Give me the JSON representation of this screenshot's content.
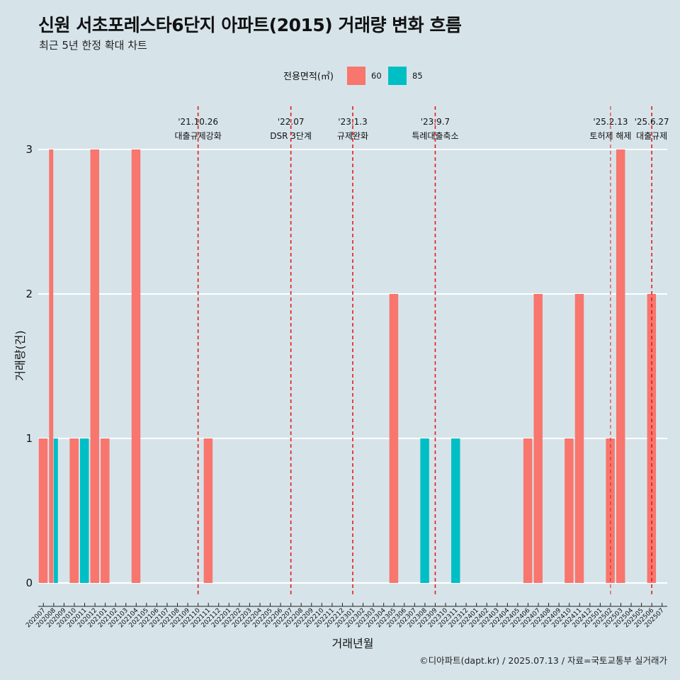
{
  "title": "신원 서초포레스타6단지 아파트(2015) 거래량 변화 흐름",
  "subtitle": "최근 5년 한정 확대 차트",
  "caption": "©디아파트(dapt.kr) / 2025.07.13 / 자료=국토교통부 실거래가",
  "chart_data": {
    "type": "bar",
    "xlabel": "거래년월",
    "ylabel": "거래량(건)",
    "ylim": [
      0,
      3
    ],
    "yticks": [
      0,
      1,
      2,
      3
    ],
    "grid": "horizontal",
    "legend": {
      "title": "전용면적(㎡)",
      "position": "top",
      "entries": [
        {
          "label": "60",
          "color": "#F8766D"
        },
        {
          "label": "85",
          "color": "#00BFC4"
        }
      ]
    },
    "categories": [
      "202007",
      "202008",
      "202009",
      "202010",
      "202011",
      "202012",
      "202101",
      "202102",
      "202103",
      "202104",
      "202105",
      "202106",
      "202107",
      "202108",
      "202109",
      "202110",
      "202111",
      "202112",
      "202201",
      "202202",
      "202203",
      "202204",
      "202205",
      "202206",
      "202207",
      "202208",
      "202209",
      "202210",
      "202211",
      "202212",
      "202301",
      "202302",
      "202303",
      "202304",
      "202305",
      "202306",
      "202307",
      "202308",
      "202309",
      "202310",
      "202311",
      "202312",
      "202401",
      "202402",
      "202403",
      "202404",
      "202405",
      "202406",
      "202407",
      "202408",
      "202409",
      "202410",
      "202411",
      "202412",
      "202501",
      "202502",
      "202503",
      "202504",
      "202505",
      "202506",
      "202507"
    ],
    "series": [
      {
        "name": "60",
        "color": "#F8766D",
        "values": [
          1,
          3,
          0,
          1,
          0,
          3,
          1,
          0,
          0,
          3,
          0,
          0,
          0,
          0,
          0,
          0,
          1,
          0,
          0,
          0,
          0,
          0,
          0,
          0,
          0,
          0,
          0,
          0,
          0,
          0,
          0,
          0,
          0,
          0,
          2,
          0,
          0,
          0,
          0,
          0,
          0,
          0,
          0,
          0,
          0,
          0,
          0,
          1,
          2,
          0,
          0,
          1,
          2,
          0,
          0,
          1,
          3,
          0,
          0,
          2,
          0
        ]
      },
      {
        "name": "85",
        "color": "#00BFC4",
        "values": [
          0,
          1,
          0,
          0,
          1,
          0,
          0,
          0,
          0,
          0,
          0,
          0,
          0,
          0,
          0,
          0,
          0,
          0,
          0,
          0,
          0,
          0,
          0,
          0,
          0,
          0,
          0,
          0,
          0,
          0,
          0,
          0,
          0,
          0,
          0,
          0,
          0,
          1,
          0,
          0,
          1,
          0,
          0,
          0,
          0,
          0,
          0,
          0,
          0,
          0,
          0,
          0,
          0,
          0,
          0,
          0,
          0,
          0,
          0,
          0,
          0
        ]
      }
    ],
    "events": [
      {
        "date": "'21.10.26",
        "label": "대출규제강화",
        "x": "202110"
      },
      {
        "date": "'22.07",
        "label": "DSR 3단계",
        "x": "202207"
      },
      {
        "date": "'23.1.3",
        "label": "규제완화",
        "x": "202301"
      },
      {
        "date": "'23.9.7",
        "label": "특례대출축소",
        "x": "202309"
      },
      {
        "date": "'25.2.13",
        "label": "토허제 해제",
        "x": "202502",
        "style": "thin"
      },
      {
        "date": "'25.6.27",
        "label": "대출규제",
        "x": "202506"
      }
    ]
  }
}
